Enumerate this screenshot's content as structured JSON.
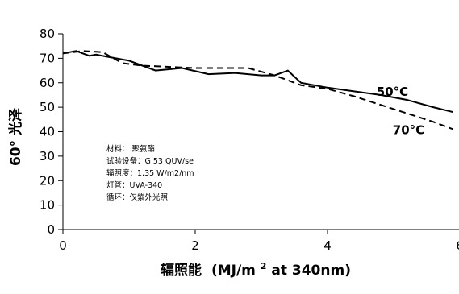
{
  "chart_data": {
    "type": "line",
    "xlabel_prefix": "辐照能",
    "xlabel_main": "(MJ/m",
    "xlabel_sup": "2",
    "xlabel_suffix": " at 340nm)",
    "ylabel": "60° 光泽",
    "xlim": [
      0,
      6
    ],
    "ylim": [
      0,
      80
    ],
    "x_ticks": [
      "0",
      "2",
      "4",
      "6"
    ],
    "y_ticks": [
      "0",
      "10",
      "20",
      "30",
      "40",
      "50",
      "60",
      "70",
      "80"
    ],
    "grid": false,
    "series": [
      {
        "name": "50°C",
        "style": "solid",
        "color": "#000000",
        "points": [
          [
            0,
            72
          ],
          [
            0.2,
            73
          ],
          [
            0.4,
            71
          ],
          [
            0.5,
            71.5
          ],
          [
            0.8,
            70
          ],
          [
            1.0,
            69
          ],
          [
            1.4,
            65
          ],
          [
            1.8,
            66
          ],
          [
            2.2,
            63.5
          ],
          [
            2.6,
            64
          ],
          [
            3.0,
            63
          ],
          [
            3.2,
            63
          ],
          [
            3.4,
            65
          ],
          [
            3.6,
            60
          ],
          [
            4.0,
            58
          ],
          [
            4.4,
            56.5
          ],
          [
            4.8,
            55
          ],
          [
            5.2,
            53
          ],
          [
            5.6,
            50
          ],
          [
            5.9,
            48
          ]
        ]
      },
      {
        "name": "70°C",
        "style": "dashed",
        "color": "#000000",
        "points": [
          [
            0,
            72
          ],
          [
            0.3,
            73
          ],
          [
            0.6,
            72.5
          ],
          [
            0.9,
            68
          ],
          [
            1.2,
            67
          ],
          [
            1.6,
            66.5
          ],
          [
            2.0,
            66
          ],
          [
            2.4,
            66
          ],
          [
            2.8,
            66
          ],
          [
            3.2,
            63
          ],
          [
            3.6,
            59
          ],
          [
            4.0,
            57.5
          ],
          [
            4.4,
            54.5
          ],
          [
            4.8,
            51
          ],
          [
            5.2,
            47.5
          ],
          [
            5.6,
            44
          ],
          [
            5.9,
            41
          ]
        ]
      }
    ],
    "annotations": [
      "材料：  聚氨酯",
      "试验设备：G 53  QUV/se",
      "辐照度：1.35 W/m2/nm",
      "灯管：UVA-340",
      "循环：仅紫外光照"
    ]
  }
}
